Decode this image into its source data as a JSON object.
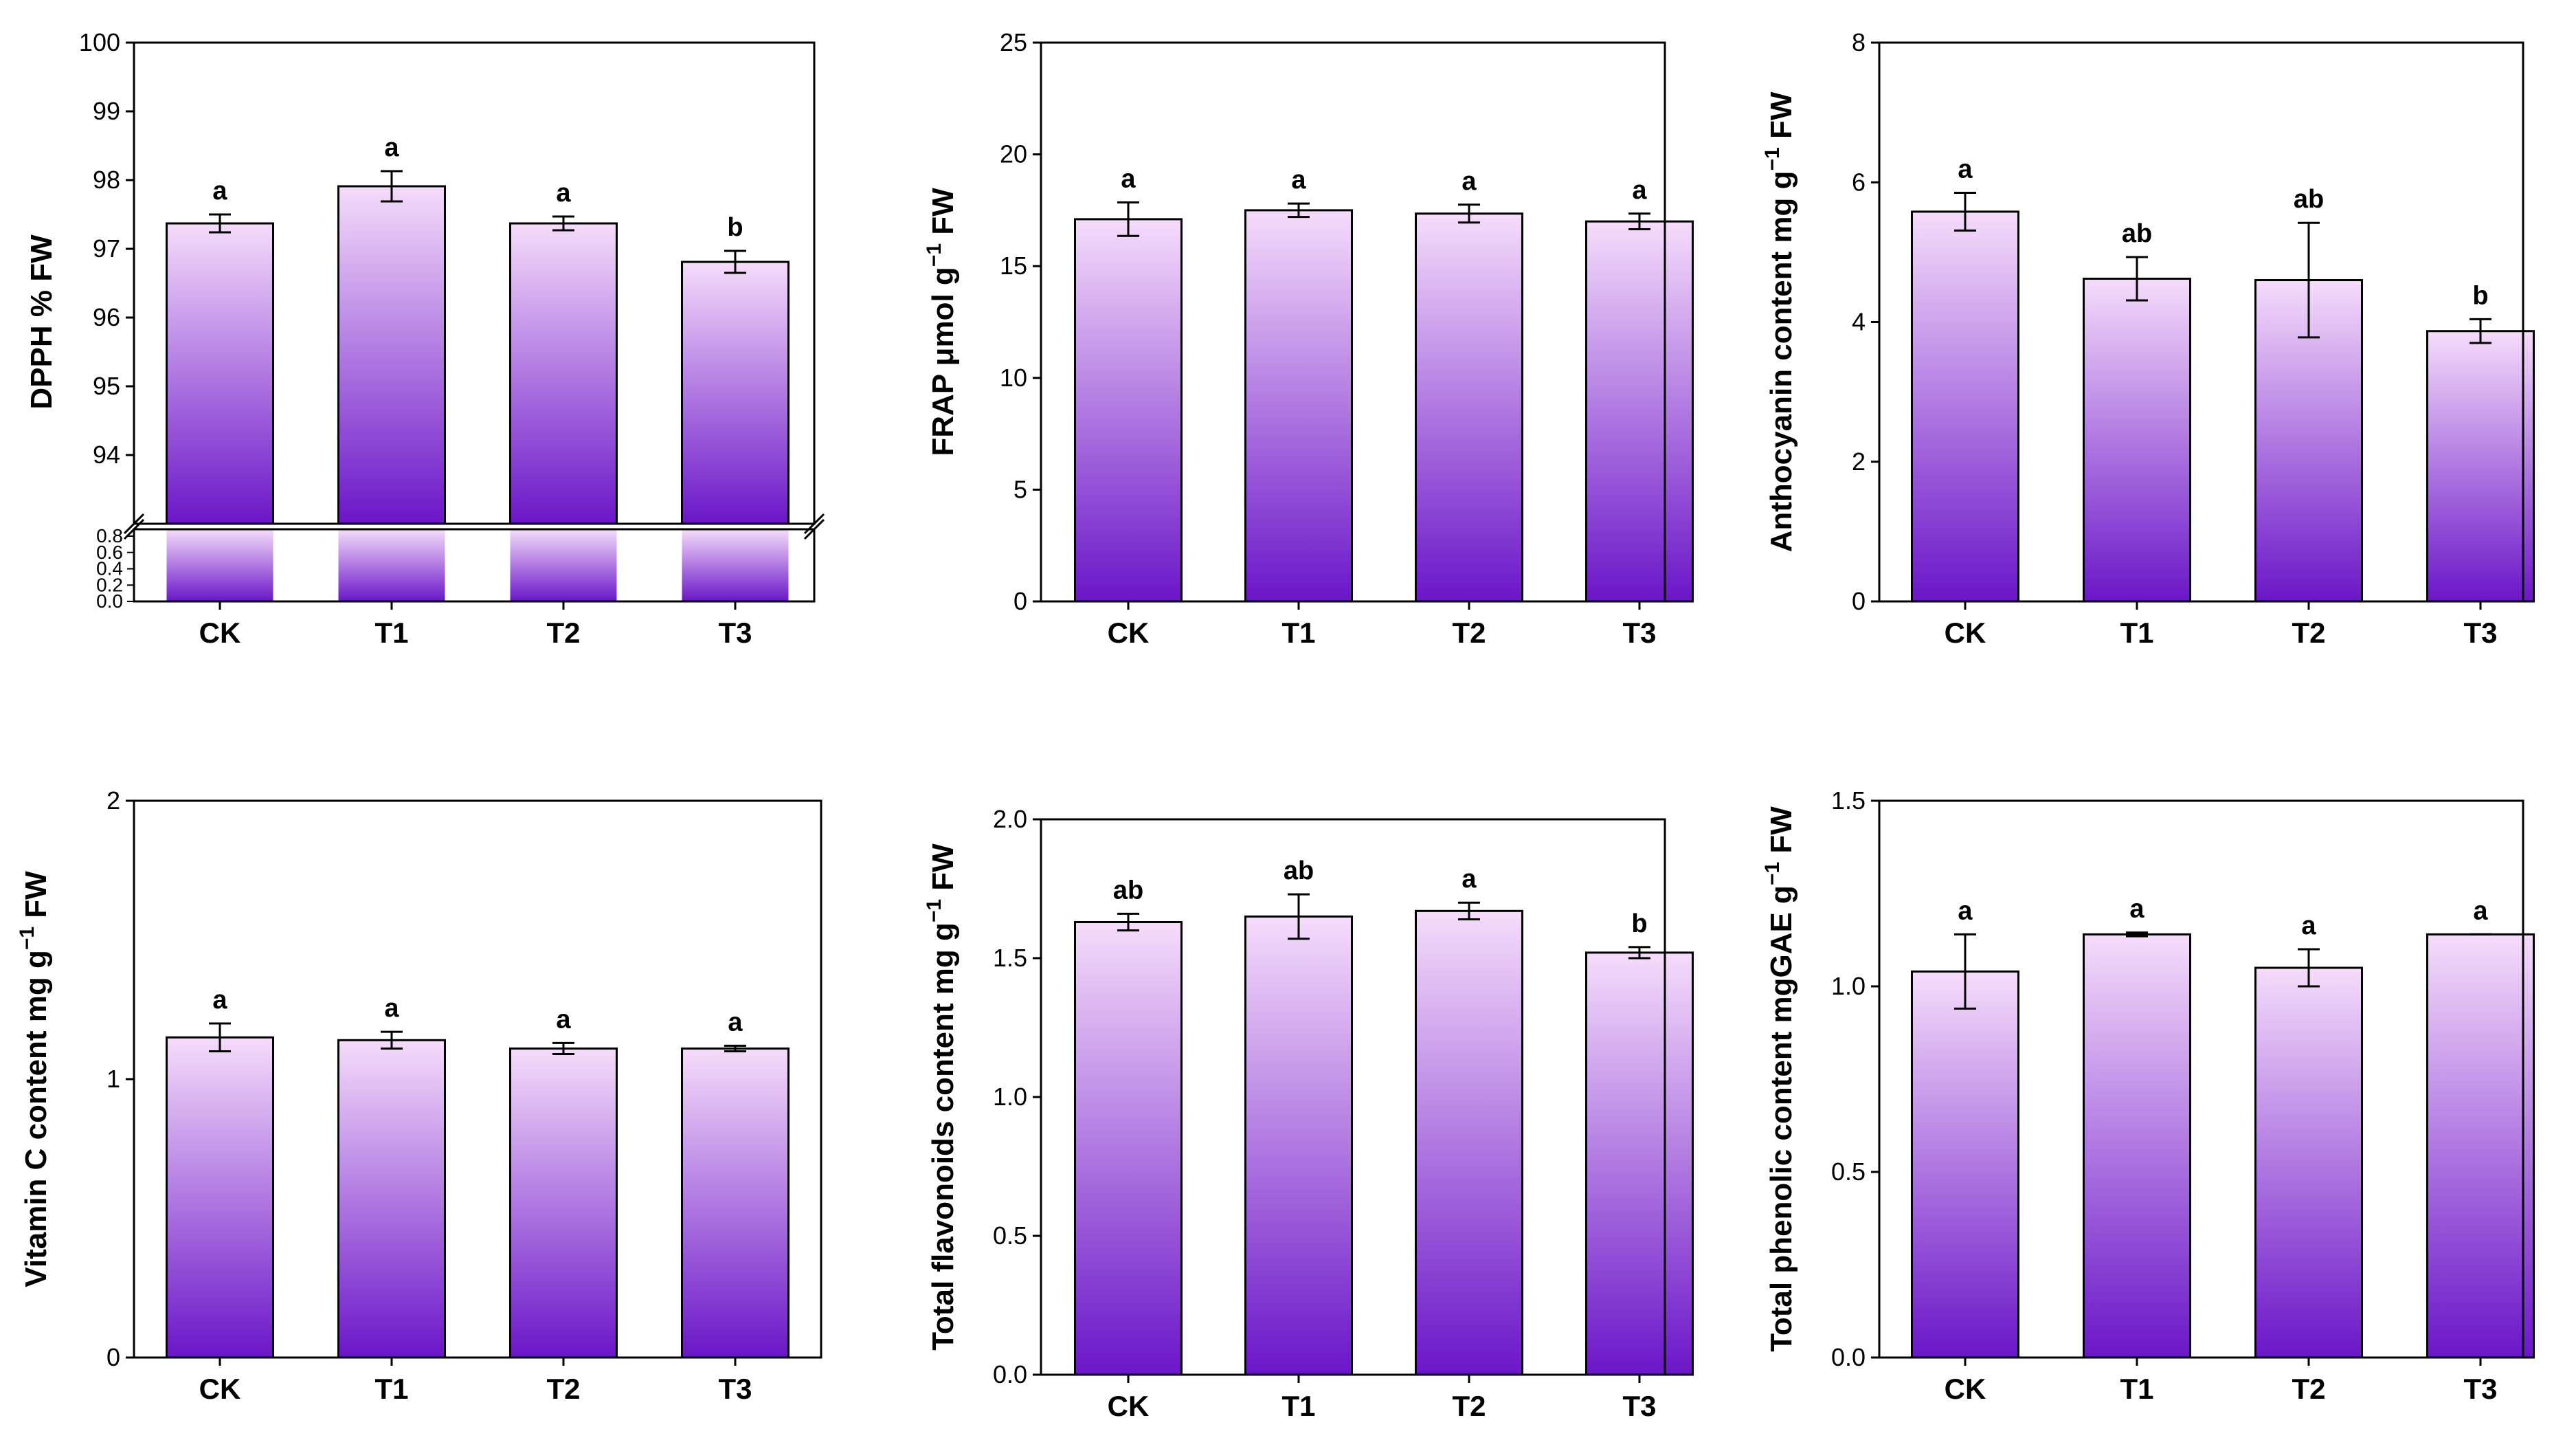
{
  "colors": {
    "bar_top": "#f6dcfb",
    "bar_bottom": "#6a16c8",
    "axis": "#000000"
  },
  "chart_data": [
    {
      "type": "bar",
      "categories": [
        "CK",
        "T1",
        "T2",
        "T3"
      ],
      "values": [
        97.37,
        97.91,
        97.37,
        96.81
      ],
      "errors": [
        0.13,
        0.22,
        0.1,
        0.16
      ],
      "significance": [
        "a",
        "a",
        "a",
        "b"
      ],
      "ylabel_main": "DPPH % FW",
      "ylim": [
        93.0,
        100.0
      ],
      "yticks": [
        "94",
        "95",
        "96",
        "97",
        "98",
        "99",
        "100"
      ],
      "axis_break": true,
      "lower_ylim": [
        0.0,
        0.8
      ],
      "lower_yticks": [
        "0.0",
        "0.2",
        "0.4",
        "0.6",
        "0.8"
      ]
    },
    {
      "type": "bar",
      "categories": [
        "CK",
        "T1",
        "T2",
        "T3"
      ],
      "values": [
        17.1,
        17.5,
        17.35,
        17.0
      ],
      "errors": [
        0.75,
        0.3,
        0.4,
        0.35
      ],
      "significance": [
        "a",
        "a",
        "a",
        "a"
      ],
      "ylabel_main": "FRAP μmol g",
      "ylabel_sup": "−1",
      "ylabel_tail": " FW",
      "ylim": [
        0,
        25
      ],
      "yticks": [
        "0",
        "5",
        "10",
        "15",
        "20",
        "25"
      ]
    },
    {
      "type": "bar",
      "categories": [
        "CK",
        "T1",
        "T2",
        "T3"
      ],
      "values": [
        5.58,
        4.62,
        4.6,
        3.87
      ],
      "errors": [
        0.27,
        0.31,
        0.82,
        0.17
      ],
      "significance": [
        "a",
        "ab",
        "ab",
        "b"
      ],
      "ylabel_main": "Anthocyanin content mg g",
      "ylabel_sup": "−1",
      "ylabel_tail": " FW",
      "ylim": [
        0,
        8
      ],
      "yticks": [
        "0",
        "2",
        "4",
        "6",
        "8"
      ]
    },
    {
      "type": "bar",
      "categories": [
        "CK",
        "T1",
        "T2",
        "T3"
      ],
      "values": [
        1.15,
        1.14,
        1.11,
        1.11
      ],
      "errors": [
        0.05,
        0.03,
        0.02,
        0.01
      ],
      "significance": [
        "a",
        "a",
        "a",
        "a"
      ],
      "ylabel_main": "Vitamin C content mg g",
      "ylabel_sup": "−1",
      "ylabel_tail": " FW",
      "ylim": [
        0,
        2
      ],
      "yticks": [
        "0",
        "1",
        "2"
      ]
    },
    {
      "type": "bar",
      "categories": [
        "CK",
        "T1",
        "T2",
        "T3"
      ],
      "values": [
        1.63,
        1.65,
        1.67,
        1.52
      ],
      "errors": [
        0.03,
        0.08,
        0.03,
        0.02
      ],
      "significance": [
        "ab",
        "ab",
        "a",
        "b"
      ],
      "ylabel_main": "Total flavonoids content mg g",
      "ylabel_sup": "−1",
      "ylabel_tail": " FW",
      "ylim": [
        0,
        2.0
      ],
      "yticks": [
        "0.0",
        "0.5",
        "1.0",
        "1.5",
        "2.0"
      ]
    },
    {
      "type": "bar",
      "categories": [
        "CK",
        "T1",
        "T2",
        "T3"
      ],
      "values": [
        1.04,
        1.14,
        1.05,
        1.14
      ],
      "errors": [
        0.1,
        0.005,
        0.05,
        0.0
      ],
      "significance": [
        "a",
        "a",
        "a",
        "a"
      ],
      "ylabel_main": "Total phenolic content mgGAE g",
      "ylabel_sup": "−1",
      "ylabel_tail": " FW",
      "ylim": [
        0,
        1.5
      ],
      "yticks": [
        "0.0",
        "0.5",
        "1.0",
        "1.5"
      ]
    }
  ]
}
